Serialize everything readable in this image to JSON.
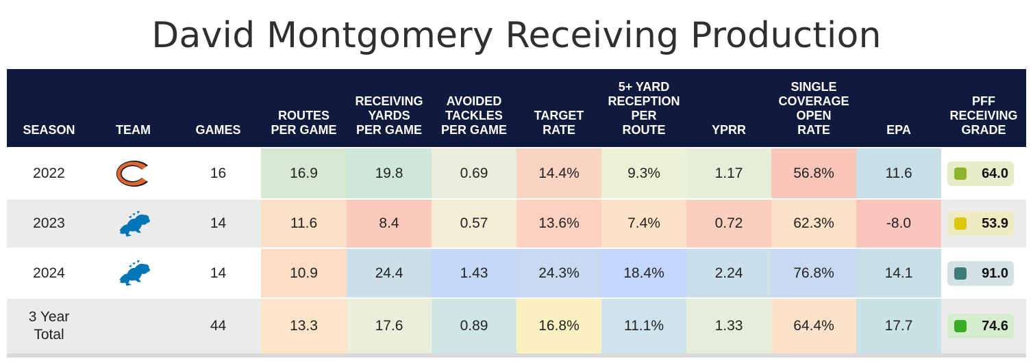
{
  "title": "David Montgomery Receiving Production",
  "columns": [
    "SEASON",
    "TEAM",
    "GAMES",
    "ROUTES\nPER GAME",
    "RECEIVING\nYARDS\nPER GAME",
    "AVOIDED\nTACKLES\nPER GAME",
    "TARGET\nRATE",
    "5+ YARD\nRECEPTION\nPER\nROUTE",
    "YPRR",
    "SINGLE\nCOVERAGE\nOPEN\nRATE",
    "EPA",
    "PFF\nRECEIVING\nGRADE"
  ],
  "colors": {
    "header_bg": "#0f1a3d",
    "bears_navy": "#0b162a",
    "bears_orange": "#e1662c",
    "lions_blue": "#0076b6"
  },
  "chart_data": {
    "type": "table",
    "title": "David Montgomery Receiving Production",
    "rows": [
      {
        "season": "2022",
        "team_icon": "bears-logo-icon",
        "games": "16",
        "stats": [
          "16.9",
          "19.8",
          "0.69",
          "14.4%",
          "9.3%",
          "1.17",
          "56.8%",
          "11.6"
        ],
        "stat_colors": [
          "#d6e8d2",
          "#cfe6db",
          "#e9eedc",
          "#fbd3c3",
          "#eef0d5",
          "#e5eed9",
          "#fac6bb",
          "#c7e0e8"
        ],
        "grade": "64.0",
        "grade_color": "#8db52c",
        "grade_bg": "#e7edc9"
      },
      {
        "season": "2023",
        "team_icon": "lions-logo-icon",
        "games": "14",
        "stats": [
          "11.6",
          "8.4",
          "0.57",
          "13.6%",
          "7.4%",
          "0.72",
          "62.3%",
          "-8.0"
        ],
        "stat_colors": [
          "#fde1c7",
          "#fbc9bc",
          "#f5ecd5",
          "#fcd1c1",
          "#fde2c8",
          "#fbcfbf",
          "#fde0c8",
          "#fac5bc"
        ],
        "grade": "53.9",
        "grade_color": "#dcc80a",
        "grade_bg": "#efeac1"
      },
      {
        "season": "2024",
        "team_icon": "lions-logo-icon",
        "games": "14",
        "stats": [
          "10.9",
          "24.4",
          "1.43",
          "24.3%",
          "18.4%",
          "2.24",
          "76.8%",
          "14.1"
        ],
        "stat_colors": [
          "#fddcc6",
          "#cadfe8",
          "#c3d7f6",
          "#c8daf1",
          "#c3d6fb",
          "#c9dfe9",
          "#c8daf3",
          "#c9dfe8"
        ],
        "grade": "91.0",
        "grade_color": "#3c7b7a",
        "grade_bg": "#d2e2e4"
      },
      {
        "season": "3 Year\nTotal",
        "team_icon": "",
        "games": "44",
        "stats": [
          "13.3",
          "17.6",
          "0.89",
          "16.8%",
          "11.1%",
          "1.33",
          "64.4%",
          "17.7"
        ],
        "stat_colors": [
          "#fde3c7",
          "#eaeedb",
          "#cfe6e4",
          "#fbf0bf",
          "#cfe3ec",
          "#e4eedb",
          "#fde1c8",
          "#c9e2e6"
        ],
        "grade": "74.6",
        "grade_color": "#3aad28",
        "grade_bg": "#d5eccd"
      }
    ]
  }
}
